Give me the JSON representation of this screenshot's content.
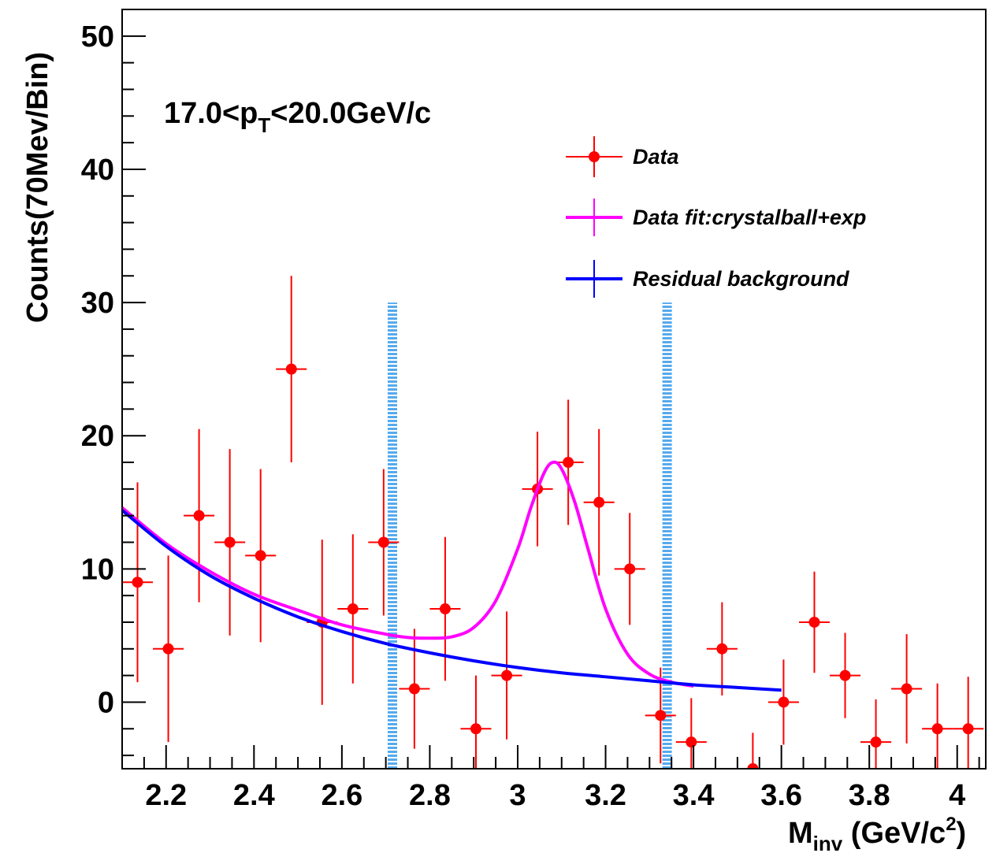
{
  "chart_data": {
    "type": "scatter",
    "title": "",
    "xlabel": {
      "main": "M",
      "sub": "inv",
      "rest": " (GeV/c",
      "sup": "2",
      "end": ")"
    },
    "ylabel": "Counts(70Mev/Bin)",
    "xlim": [
      2.1,
      4.065
    ],
    "ylim": [
      -5,
      52
    ],
    "xticks": [
      "2.2",
      "2.4",
      "2.6",
      "2.8",
      "3",
      "3.2",
      "3.4",
      "3.6",
      "3.8",
      "4"
    ],
    "yticks": [
      "0",
      "10",
      "20",
      "30",
      "40",
      "50"
    ],
    "annotation": {
      "main": "17.0<p",
      "sub": "T",
      "rest": "<20.0GeV/c"
    },
    "colors": {
      "data": "#ff0000",
      "fit": "#ff00ff",
      "background": "#0000ff",
      "markers": "#55aaee"
    },
    "legend": {
      "position": "top-right",
      "entries": [
        {
          "label": "Data",
          "style": "marker-errorbar"
        },
        {
          "label": "Data fit:crystalball+exp",
          "style": "line"
        },
        {
          "label": "Residual background",
          "style": "line"
        }
      ]
    },
    "series": [
      {
        "name": "Data",
        "x": [
          2.135,
          2.205,
          2.275,
          2.345,
          2.415,
          2.485,
          2.555,
          2.625,
          2.695,
          2.765,
          2.835,
          2.905,
          2.975,
          3.045,
          3.115,
          3.185,
          3.255,
          3.325,
          3.395,
          3.465,
          3.535,
          3.605,
          3.675,
          3.745,
          3.815,
          3.885,
          3.955,
          4.025
        ],
        "y": [
          9,
          4,
          14,
          12,
          11,
          25,
          6,
          7,
          12,
          1,
          7,
          -2,
          2,
          16,
          18,
          15,
          10,
          -1,
          -3,
          4,
          -5,
          0,
          6,
          2,
          -3,
          1,
          -2,
          -2
        ],
        "yerr": [
          7.5,
          7,
          6.5,
          7,
          6.5,
          7,
          6.2,
          5.6,
          5.5,
          4.5,
          5.4,
          4,
          4.8,
          4.3,
          4.7,
          5.5,
          4.2,
          3.6,
          3.3,
          3.5,
          2.7,
          3.2,
          3.8,
          3.2,
          3.2,
          4.1,
          3.4,
          3.9
        ],
        "xerr": 0.035
      },
      {
        "name": "Data fit:crystalball+exp",
        "x": [
          2.1,
          2.2,
          2.3,
          2.4,
          2.5,
          2.6,
          2.7,
          2.75,
          2.8,
          2.85,
          2.9,
          2.95,
          3.0,
          3.03,
          3.06,
          3.08,
          3.1,
          3.13,
          3.16,
          3.2,
          3.25,
          3.3,
          3.35,
          3.4
        ],
        "y": [
          14.6,
          11.9,
          9.8,
          8.1,
          6.9,
          5.8,
          5.1,
          4.85,
          4.8,
          4.9,
          5.6,
          7.6,
          11.5,
          14.6,
          17.2,
          18.0,
          17.5,
          15.0,
          11.5,
          7.0,
          3.6,
          2.1,
          1.5,
          1.2
        ]
      },
      {
        "name": "Residual background",
        "x": [
          2.1,
          2.2,
          2.3,
          2.4,
          2.5,
          2.6,
          2.7,
          2.8,
          2.9,
          3.0,
          3.1,
          3.2,
          3.3,
          3.4,
          3.5,
          3.6
        ],
        "y": [
          14.4,
          11.7,
          9.5,
          7.8,
          6.4,
          5.3,
          4.4,
          3.7,
          3.1,
          2.6,
          2.2,
          1.9,
          1.6,
          1.3,
          1.1,
          0.9
        ]
      }
    ],
    "vertical_markers": [
      {
        "x": 2.715,
        "ymax": 30
      },
      {
        "x": 3.34,
        "ymax": 30
      }
    ]
  }
}
